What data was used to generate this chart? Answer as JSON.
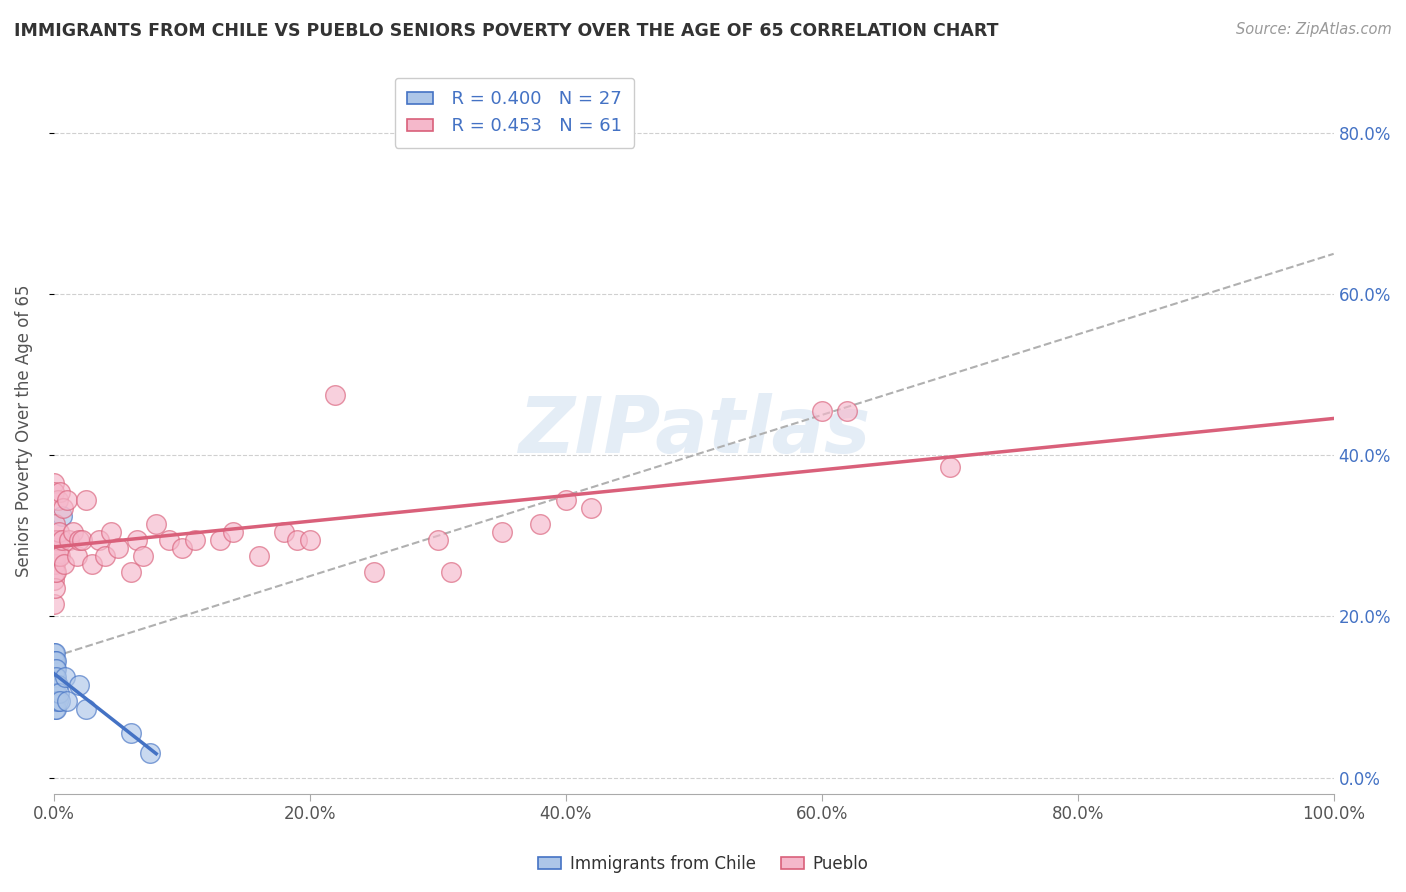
{
  "title": "IMMIGRANTS FROM CHILE VS PUEBLO SENIORS POVERTY OVER THE AGE OF 65 CORRELATION CHART",
  "source": "Source: ZipAtlas.com",
  "ylabel": "Seniors Poverty Over the Age of 65",
  "xlim": [
    0.0,
    1.0
  ],
  "ylim": [
    -0.02,
    0.88
  ],
  "yticks": [
    0.0,
    0.2,
    0.4,
    0.6,
    0.8
  ],
  "ytick_labels": [
    "0.0%",
    "20.0%",
    "40.0%",
    "60.0%",
    "80.0%"
  ],
  "xticks": [
    0.0,
    0.2,
    0.4,
    0.6,
    0.8,
    1.0
  ],
  "xtick_labels": [
    "0.0%",
    "20.0%",
    "40.0%",
    "60.0%",
    "80.0%",
    "100.0%"
  ],
  "legend_R1": "R = 0.400",
  "legend_N1": "N = 27",
  "legend_R2": "R = 0.453",
  "legend_N2": "N = 61",
  "color_blue": "#adc6e8",
  "color_pink": "#f5b8cb",
  "color_line_blue": "#4472c4",
  "color_line_pink": "#d9607a",
  "color_line_dashed": "#b0b0b0",
  "watermark": "ZIPatlas",
  "chile_points": [
    [
      0.0,
      0.155
    ],
    [
      0.0,
      0.145
    ],
    [
      0.001,
      0.155
    ],
    [
      0.001,
      0.145
    ],
    [
      0.001,
      0.135
    ],
    [
      0.001,
      0.125
    ],
    [
      0.001,
      0.115
    ],
    [
      0.001,
      0.105
    ],
    [
      0.001,
      0.095
    ],
    [
      0.001,
      0.085
    ],
    [
      0.002,
      0.145
    ],
    [
      0.002,
      0.135
    ],
    [
      0.002,
      0.125
    ],
    [
      0.002,
      0.105
    ],
    [
      0.002,
      0.095
    ],
    [
      0.002,
      0.085
    ],
    [
      0.003,
      0.115
    ],
    [
      0.003,
      0.095
    ],
    [
      0.004,
      0.105
    ],
    [
      0.005,
      0.095
    ],
    [
      0.006,
      0.325
    ],
    [
      0.009,
      0.125
    ],
    [
      0.01,
      0.095
    ],
    [
      0.02,
      0.115
    ],
    [
      0.025,
      0.085
    ],
    [
      0.06,
      0.055
    ],
    [
      0.075,
      0.03
    ]
  ],
  "pueblo_points": [
    [
      0.0,
      0.365
    ],
    [
      0.0,
      0.355
    ],
    [
      0.0,
      0.295
    ],
    [
      0.0,
      0.285
    ],
    [
      0.0,
      0.275
    ],
    [
      0.0,
      0.245
    ],
    [
      0.0,
      0.215
    ],
    [
      0.001,
      0.315
    ],
    [
      0.001,
      0.295
    ],
    [
      0.001,
      0.285
    ],
    [
      0.001,
      0.265
    ],
    [
      0.001,
      0.255
    ],
    [
      0.001,
      0.235
    ],
    [
      0.002,
      0.295
    ],
    [
      0.002,
      0.275
    ],
    [
      0.002,
      0.255
    ],
    [
      0.003,
      0.345
    ],
    [
      0.003,
      0.295
    ],
    [
      0.004,
      0.305
    ],
    [
      0.004,
      0.275
    ],
    [
      0.005,
      0.355
    ],
    [
      0.005,
      0.275
    ],
    [
      0.006,
      0.295
    ],
    [
      0.007,
      0.335
    ],
    [
      0.008,
      0.265
    ],
    [
      0.01,
      0.345
    ],
    [
      0.012,
      0.295
    ],
    [
      0.015,
      0.305
    ],
    [
      0.018,
      0.275
    ],
    [
      0.02,
      0.295
    ],
    [
      0.022,
      0.295
    ],
    [
      0.025,
      0.345
    ],
    [
      0.03,
      0.265
    ],
    [
      0.035,
      0.295
    ],
    [
      0.04,
      0.275
    ],
    [
      0.045,
      0.305
    ],
    [
      0.05,
      0.285
    ],
    [
      0.06,
      0.255
    ],
    [
      0.065,
      0.295
    ],
    [
      0.07,
      0.275
    ],
    [
      0.08,
      0.315
    ],
    [
      0.09,
      0.295
    ],
    [
      0.1,
      0.285
    ],
    [
      0.11,
      0.295
    ],
    [
      0.13,
      0.295
    ],
    [
      0.14,
      0.305
    ],
    [
      0.16,
      0.275
    ],
    [
      0.18,
      0.305
    ],
    [
      0.19,
      0.295
    ],
    [
      0.2,
      0.295
    ],
    [
      0.22,
      0.475
    ],
    [
      0.25,
      0.255
    ],
    [
      0.3,
      0.295
    ],
    [
      0.31,
      0.255
    ],
    [
      0.35,
      0.305
    ],
    [
      0.38,
      0.315
    ],
    [
      0.4,
      0.345
    ],
    [
      0.42,
      0.335
    ],
    [
      0.6,
      0.455
    ],
    [
      0.62,
      0.455
    ],
    [
      0.7,
      0.385
    ]
  ],
  "chile_line_x": [
    0.0,
    0.1
  ],
  "dashed_line_x": [
    0.0,
    1.0
  ]
}
